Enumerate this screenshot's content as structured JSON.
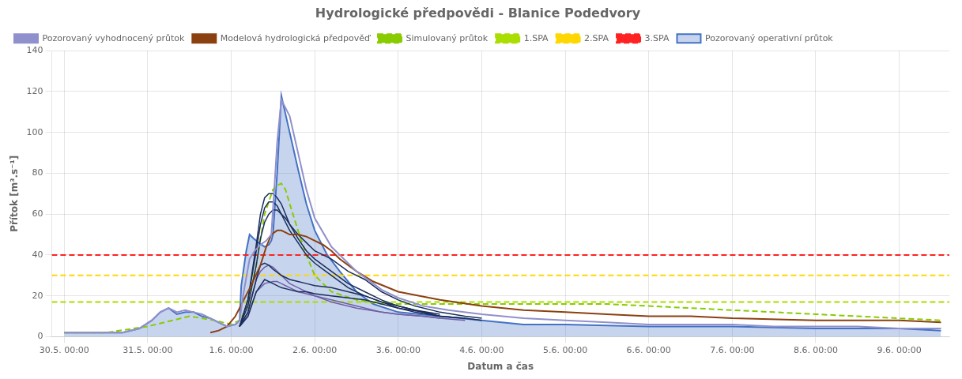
{
  "chart_data": {
    "type": "line",
    "title": "Hydrologické předpovědi - Blanice Podedvory",
    "x_label": "Datum a čas",
    "y_label": "Přítok [m³.s⁻¹]",
    "xlim": [
      -0.15,
      10.6
    ],
    "xticks": [
      {
        "value": 0,
        "label": "30.5. 00:00"
      },
      {
        "value": 1,
        "label": "31.5. 00:00"
      },
      {
        "value": 2,
        "label": "1.6. 00:00"
      },
      {
        "value": 3,
        "label": "2.6. 00:00"
      },
      {
        "value": 4,
        "label": "3.6. 00:00"
      },
      {
        "value": 5,
        "label": "4.6. 00:00"
      },
      {
        "value": 6,
        "label": "5.6. 00:00"
      },
      {
        "value": 7,
        "label": "6.6. 00:00"
      },
      {
        "value": 8,
        "label": "7.6. 00:00"
      },
      {
        "value": 9,
        "label": "8.6. 00:00"
      },
      {
        "value": 10,
        "label": "9.6. 00:00"
      }
    ],
    "ylim": [
      0,
      140
    ],
    "yticks": [
      0,
      20,
      40,
      60,
      80,
      100,
      120,
      140
    ],
    "grid": true,
    "legend": "upper left",
    "series": [
      {
        "name": "Pozorovaný operativní průtok",
        "type": "area",
        "color": "#4472c4",
        "x": [
          0,
          0.1,
          0.3,
          0.5,
          0.7,
          0.9,
          1.05,
          1.15,
          1.25,
          1.35,
          1.45,
          1.55,
          1.65,
          1.75,
          1.85,
          1.95,
          2.05,
          2.1,
          2.12,
          2.18,
          2.22,
          2.27,
          2.33,
          2.4,
          2.45,
          2.48,
          2.5,
          2.55,
          2.6,
          2.7,
          2.8,
          2.9,
          3.0,
          3.15,
          3.3,
          3.5,
          3.7,
          4.0,
          4.5,
          5.0,
          5.5,
          6.0,
          7.0,
          8.0,
          9.0,
          10.0,
          10.5
        ],
        "values": [
          2,
          2,
          2,
          2,
          2,
          4,
          8,
          12,
          14,
          11,
          12,
          12,
          10,
          9,
          7,
          5,
          6,
          8,
          25,
          42,
          50,
          48,
          46,
          44,
          45,
          47,
          50,
          80,
          118,
          100,
          82,
          65,
          52,
          40,
          32,
          22,
          16,
          12,
          10,
          8,
          6,
          6,
          5,
          5,
          4,
          4,
          3
        ]
      },
      {
        "name": "Pozorovaný vyhodnocený průtok",
        "color": "#9090cc",
        "x": [
          0,
          0.1,
          0.3,
          0.5,
          0.7,
          0.9,
          1.05,
          1.15,
          1.25,
          1.35,
          1.45,
          1.55,
          1.65,
          1.75,
          1.85,
          1.95,
          2.05,
          2.1,
          2.15,
          2.22,
          2.28,
          2.35,
          2.42,
          2.48,
          2.52,
          2.55,
          2.6,
          2.7,
          2.8,
          2.9,
          3.0,
          3.2,
          3.5,
          3.8,
          4.0,
          4.3,
          4.6,
          5.0,
          5.5,
          6.0,
          6.5,
          7.0,
          7.5,
          8.0,
          8.5,
          9.0,
          9.5,
          10.0,
          10.5
        ],
        "values": [
          2,
          2,
          2,
          2,
          2,
          4,
          8,
          12,
          14,
          12,
          13,
          12,
          11,
          9,
          7,
          5,
          6,
          8,
          22,
          38,
          42,
          45,
          47,
          50,
          75,
          95,
          116,
          108,
          90,
          72,
          58,
          44,
          32,
          23,
          19,
          15,
          13,
          11,
          9,
          8,
          7,
          6,
          6,
          6,
          5,
          5,
          5,
          4,
          4
        ]
      },
      {
        "name": "Modelová hydrologická předpověď",
        "color": "#8b4010",
        "x": [
          1.75,
          1.85,
          1.95,
          2.05,
          2.15,
          2.25,
          2.35,
          2.42,
          2.48,
          2.55,
          2.6,
          2.65,
          2.7,
          2.8,
          2.9,
          3.0,
          3.1,
          3.2,
          3.3,
          3.5,
          3.7,
          4.0,
          4.5,
          5.0,
          5.5,
          6.0,
          6.5,
          7.0,
          7.5,
          8.0,
          9.0,
          10.0,
          10.5
        ],
        "values": [
          2,
          3,
          5,
          10,
          18,
          26,
          35,
          44,
          50,
          52,
          52,
          51,
          50,
          50,
          49,
          47,
          45,
          42,
          38,
          32,
          27,
          22,
          18,
          15,
          13,
          12,
          11,
          10,
          10,
          9,
          8,
          8,
          7
        ]
      },
      {
        "name": "Simulovaný průtok",
        "color": "#88cc00",
        "line_style": "dashed",
        "x": [
          0,
          0.5,
          1.0,
          1.5,
          1.8,
          2.0,
          2.1,
          2.2,
          2.3,
          2.4,
          2.5,
          2.55,
          2.6,
          2.65,
          2.7,
          2.8,
          2.9,
          3.0,
          3.2,
          3.5,
          3.8,
          4.0,
          4.5,
          5.0,
          5.5,
          6.0,
          6.5,
          7.0,
          7.5,
          8.0,
          8.5,
          9.0,
          9.5,
          10.0,
          10.5
        ],
        "values": [
          2,
          2,
          5,
          10,
          8,
          6,
          8,
          15,
          35,
          60,
          72,
          74,
          75,
          72,
          65,
          52,
          40,
          30,
          22,
          18,
          16,
          16,
          16,
          16,
          16,
          16,
          16,
          15,
          14,
          13,
          12,
          11,
          10,
          9,
          8
        ]
      },
      {
        "name": "1.SPA",
        "type": "hline",
        "color": "#aadd00",
        "line_style": "dashed",
        "value": 17
      },
      {
        "name": "2.SPA",
        "type": "hline",
        "color": "#ffd700",
        "line_style": "dashed",
        "value": 30
      },
      {
        "name": "3.SPA",
        "type": "hline",
        "color": "#ff2222",
        "line_style": "dashed",
        "value": 40
      },
      {
        "color": "#1a2e5a",
        "x": [
          2.1,
          2.2,
          2.3,
          2.35,
          2.4,
          2.45,
          2.5,
          2.55,
          2.6,
          2.65,
          2.7,
          2.8,
          2.9,
          3.0,
          3.1,
          3.2,
          3.4,
          3.6,
          3.8,
          4.0,
          4.2,
          4.5
        ],
        "values": [
          5,
          18,
          45,
          60,
          68,
          70,
          70,
          68,
          65,
          60,
          55,
          48,
          42,
          38,
          35,
          32,
          26,
          22,
          18,
          15,
          13,
          11
        ]
      },
      {
        "color": "#1a2e5a",
        "x": [
          2.1,
          2.2,
          2.3,
          2.35,
          2.4,
          2.45,
          2.5,
          2.55,
          2.6,
          2.65,
          2.7,
          2.8,
          2.9,
          3.0,
          3.1,
          3.2,
          3.4,
          3.6,
          3.8,
          4.0,
          4.2,
          4.5,
          4.8
        ],
        "values": [
          5,
          18,
          42,
          55,
          63,
          66,
          66,
          64,
          60,
          56,
          52,
          46,
          40,
          36,
          33,
          30,
          24,
          20,
          17,
          14,
          12,
          10,
          9
        ]
      },
      {
        "color": "#1a2e5a",
        "x": [
          2.1,
          2.2,
          2.3,
          2.35,
          2.4,
          2.45,
          2.5,
          2.55,
          2.6,
          2.65,
          2.7,
          2.8,
          2.9,
          3.0,
          3.1,
          3.2,
          3.4,
          3.6,
          3.8,
          4.0,
          4.2,
          4.5,
          4.8,
          5.0
        ],
        "values": [
          5,
          15,
          35,
          48,
          56,
          60,
          62,
          62,
          60,
          58,
          55,
          50,
          46,
          42,
          40,
          38,
          32,
          28,
          22,
          18,
          15,
          12,
          10,
          9
        ]
      },
      {
        "color": "#1a2e5a",
        "x": [
          2.1,
          2.2,
          2.3,
          2.35,
          2.4,
          2.45,
          2.5,
          2.6,
          2.7,
          2.8,
          2.9,
          3.0,
          3.2,
          3.4,
          3.6,
          3.8,
          4.0,
          4.3,
          4.5
        ],
        "values": [
          5,
          12,
          28,
          35,
          36,
          35,
          33,
          30,
          28,
          27,
          26,
          25,
          24,
          22,
          20,
          17,
          15,
          12,
          10
        ]
      },
      {
        "color": "#1a2e5a",
        "x": [
          2.1,
          2.2,
          2.3,
          2.4,
          2.5,
          2.6,
          2.7,
          2.8,
          2.9,
          3.0,
          3.2,
          3.4,
          3.6,
          3.8,
          4.0,
          4.3,
          4.5,
          4.8,
          5.0
        ],
        "values": [
          5,
          10,
          22,
          28,
          26,
          24,
          23,
          22,
          22,
          21,
          20,
          19,
          18,
          16,
          14,
          12,
          10,
          9,
          8
        ]
      },
      {
        "color": "#7060a8",
        "x": [
          2.1,
          2.2,
          2.3,
          2.35,
          2.4,
          2.45,
          2.5,
          2.55,
          2.6,
          2.65,
          2.7,
          2.8,
          2.9,
          3.0,
          3.2,
          3.5,
          3.8,
          4.0,
          4.3,
          4.5
        ],
        "values": [
          5,
          12,
          28,
          32,
          34,
          35,
          34,
          32,
          30,
          28,
          26,
          24,
          22,
          20,
          17,
          14,
          12,
          11,
          10,
          9
        ]
      },
      {
        "color": "#7060a8",
        "x": [
          2.1,
          2.2,
          2.3,
          2.4,
          2.5,
          2.55,
          2.6,
          2.65,
          2.7,
          2.8,
          2.9,
          3.0,
          3.2,
          3.5,
          3.8,
          4.0,
          4.3,
          4.5,
          4.8
        ],
        "values": [
          5,
          10,
          22,
          26,
          27,
          27,
          26,
          25,
          24,
          22,
          21,
          20,
          18,
          15,
          12,
          11,
          10,
          9,
          8
        ]
      }
    ]
  }
}
